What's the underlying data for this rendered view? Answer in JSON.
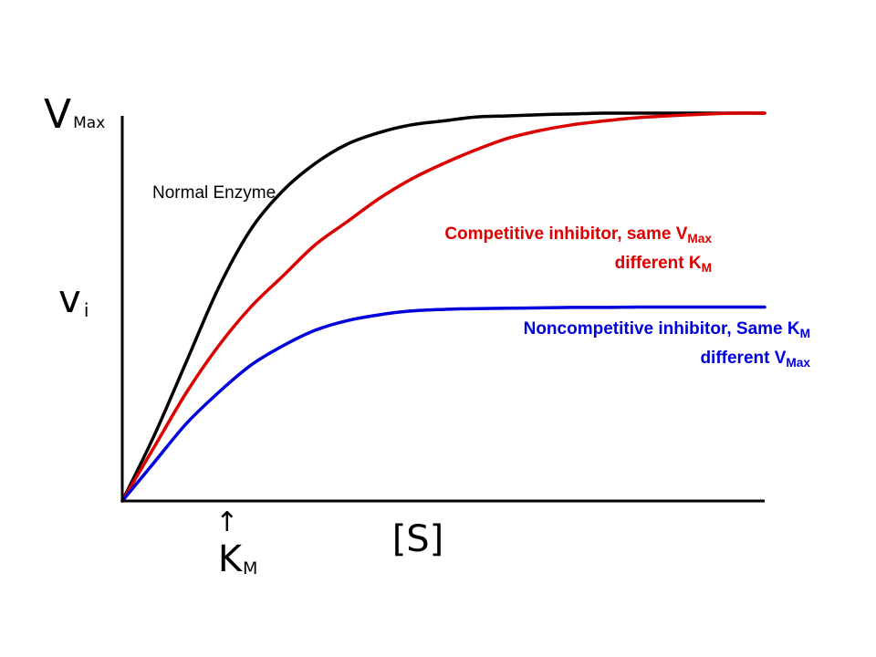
{
  "chart_data": {
    "type": "line",
    "title": "",
    "xlabel": "[S]",
    "ylabel": "vi",
    "grid": false,
    "xlim": [
      0,
      10
    ],
    "ylim": [
      0,
      1
    ],
    "y_axis_marks": {
      "vmax": {
        "main": "V",
        "sub": "Max"
      },
      "vi": {
        "main": "v",
        "sub": "i"
      }
    },
    "x_axis_marks": {
      "km": {
        "main": "K",
        "sub": "M",
        "arrow": "↑",
        "x": 1.6
      }
    },
    "series": [
      {
        "key": "normal",
        "color": "#000000",
        "x": [
          0,
          0.5,
          1,
          1.5,
          2,
          2.5,
          3,
          3.5,
          4,
          4.5,
          5,
          5.5,
          6,
          6.5,
          7,
          7.5,
          8,
          8.5,
          9,
          9.5,
          10
        ],
        "y": [
          0,
          0.17,
          0.36,
          0.55,
          0.7,
          0.8,
          0.87,
          0.92,
          0.95,
          0.97,
          0.98,
          0.99,
          0.993,
          0.996,
          0.998,
          1.0,
          1.0,
          1.0,
          1.0,
          1.0,
          1.0
        ],
        "label_lines": [
          {
            "parts": [
              {
                "t": "Normal Enzyme"
              }
            ]
          }
        ]
      },
      {
        "key": "competitive",
        "color": "#dc0000",
        "x": [
          0,
          0.5,
          1,
          1.5,
          2,
          2.5,
          3,
          3.5,
          4,
          4.5,
          5,
          5.5,
          6,
          6.5,
          7,
          7.5,
          8,
          8.5,
          9,
          9.5,
          10
        ],
        "y": [
          0,
          0.14,
          0.28,
          0.4,
          0.5,
          0.58,
          0.66,
          0.72,
          0.78,
          0.83,
          0.87,
          0.905,
          0.935,
          0.955,
          0.97,
          0.98,
          0.988,
          0.993,
          0.997,
          1.0,
          1.0
        ],
        "label_lines": [
          {
            "parts": [
              {
                "t": "Competitive inhibitor,  same V"
              },
              {
                "t": "Max",
                "sub": true
              }
            ]
          },
          {
            "parts": [
              {
                "t": "different K"
              },
              {
                "t": "M",
                "sub": true
              }
            ]
          }
        ]
      },
      {
        "key": "noncompetitive",
        "color": "#0000dc",
        "x": [
          0,
          0.5,
          1,
          1.5,
          2,
          2.5,
          3,
          3.5,
          4,
          4.5,
          5,
          5.5,
          6,
          6.5,
          7,
          7.5,
          8,
          8.5,
          9,
          9.5,
          10
        ],
        "y": [
          0,
          0.1,
          0.2,
          0.28,
          0.35,
          0.4,
          0.44,
          0.465,
          0.48,
          0.49,
          0.494,
          0.496,
          0.497,
          0.498,
          0.499,
          0.499,
          0.5,
          0.5,
          0.5,
          0.5,
          0.5
        ],
        "label_lines": [
          {
            "parts": [
              {
                "t": "Noncompetitive inhibitor,  Same K"
              },
              {
                "t": "M",
                "sub": true
              }
            ]
          },
          {
            "parts": [
              {
                "t": "different V"
              },
              {
                "t": "Max",
                "sub": true
              }
            ]
          }
        ]
      }
    ]
  }
}
